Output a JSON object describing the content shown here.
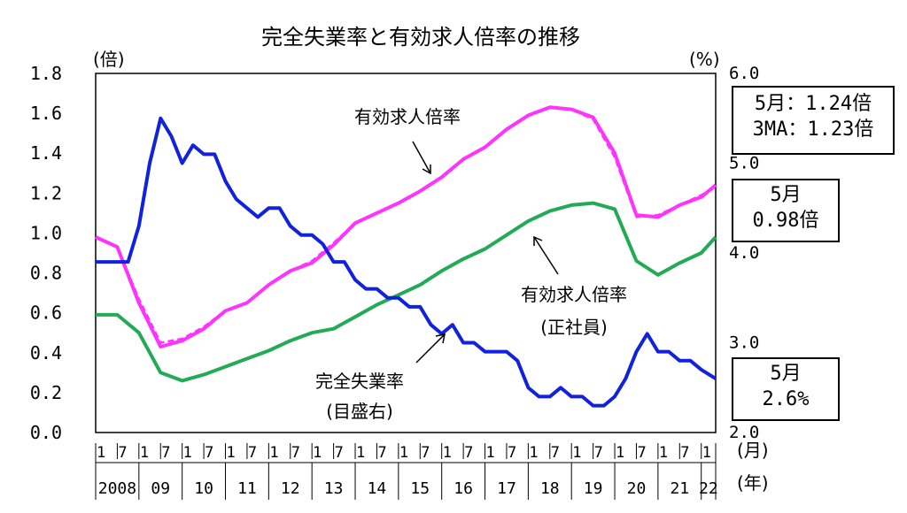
{
  "chart_data": {
    "type": "line",
    "title": "完全失業率と有効求人倍率の推移",
    "y_left": {
      "unit": "(倍)",
      "ylim": [
        0.0,
        1.8
      ],
      "ticks": [
        "0.0",
        "0.2",
        "0.4",
        "0.6",
        "0.8",
        "1.0",
        "1.2",
        "1.4",
        "1.6",
        "1.8"
      ]
    },
    "y_right": {
      "unit": "(%)",
      "ylim": [
        2.0,
        6.0
      ],
      "ticks": [
        "2.0",
        "3.0",
        "4.0",
        "5.0",
        "6.0"
      ]
    },
    "x_month_labels": [
      "1",
      "7",
      "1",
      "7",
      "1",
      "7",
      "1",
      "7",
      "1",
      "7",
      "1",
      "7",
      "1",
      "7",
      "1",
      "7",
      "1",
      "7",
      "1",
      "7",
      "1",
      "7",
      "1",
      "7",
      "1",
      "7",
      "1",
      "7",
      "1"
    ],
    "x_month_unit": "(月)",
    "x_year_labels": [
      "2008",
      "09",
      "10",
      "11",
      "12",
      "13",
      "14",
      "15",
      "16",
      "17",
      "18",
      "19",
      "20",
      "21",
      "22"
    ],
    "x_year_unit": "(年)",
    "x_range": [
      "2008-01",
      "2022-05"
    ],
    "grid": false,
    "series": [
      {
        "name": "有効求人倍率",
        "axis": "left",
        "color": "#ff33ff",
        "style": "solid",
        "x": [
          "2008-01",
          "2008-07",
          "2009-01",
          "2009-07",
          "2010-01",
          "2010-07",
          "2011-01",
          "2011-07",
          "2012-01",
          "2012-07",
          "2013-01",
          "2013-07",
          "2014-01",
          "2014-07",
          "2015-01",
          "2015-07",
          "2016-01",
          "2016-07",
          "2017-01",
          "2017-07",
          "2018-01",
          "2018-07",
          "2019-01",
          "2019-07",
          "2020-01",
          "2020-07",
          "2021-01",
          "2021-07",
          "2022-01",
          "2022-05"
        ],
        "values": [
          0.98,
          0.93,
          0.65,
          0.43,
          0.46,
          0.52,
          0.61,
          0.65,
          0.74,
          0.81,
          0.85,
          0.94,
          1.05,
          1.1,
          1.15,
          1.21,
          1.28,
          1.37,
          1.43,
          1.52,
          1.59,
          1.63,
          1.62,
          1.58,
          1.4,
          1.09,
          1.08,
          1.14,
          1.18,
          1.24
        ]
      },
      {
        "name": "有効求人倍率 3MA",
        "axis": "left",
        "color": "#ff33ff",
        "style": "dashed",
        "x": [
          "2008-01",
          "2008-07",
          "2009-01",
          "2009-07",
          "2010-01",
          "2010-07",
          "2011-01",
          "2011-07",
          "2012-01",
          "2012-07",
          "2013-01",
          "2013-07",
          "2014-01",
          "2014-07",
          "2015-01",
          "2015-07",
          "2016-01",
          "2016-07",
          "2017-01",
          "2017-07",
          "2018-01",
          "2018-07",
          "2019-01",
          "2019-07",
          "2020-01",
          "2020-07",
          "2021-01",
          "2021-07",
          "2022-01",
          "2022-05"
        ],
        "values": [
          0.98,
          0.93,
          0.67,
          0.45,
          0.47,
          0.53,
          0.61,
          0.65,
          0.74,
          0.81,
          0.86,
          0.95,
          1.05,
          1.1,
          1.15,
          1.21,
          1.28,
          1.37,
          1.43,
          1.52,
          1.59,
          1.63,
          1.62,
          1.57,
          1.38,
          1.08,
          1.09,
          1.14,
          1.19,
          1.23
        ]
      },
      {
        "name": "有効求人倍率(正社員)",
        "axis": "left",
        "color": "#22aa55",
        "style": "solid",
        "x": [
          "2008-01",
          "2008-07",
          "2009-01",
          "2009-07",
          "2010-01",
          "2010-07",
          "2011-01",
          "2011-07",
          "2012-01",
          "2012-07",
          "2013-01",
          "2013-07",
          "2014-01",
          "2014-07",
          "2015-01",
          "2015-07",
          "2016-01",
          "2016-07",
          "2017-01",
          "2017-07",
          "2018-01",
          "2018-07",
          "2019-01",
          "2019-07",
          "2020-01",
          "2020-07",
          "2021-01",
          "2021-07",
          "2022-01",
          "2022-05"
        ],
        "values": [
          0.59,
          0.59,
          0.5,
          0.3,
          0.26,
          0.29,
          0.33,
          0.37,
          0.41,
          0.46,
          0.5,
          0.52,
          0.58,
          0.64,
          0.69,
          0.74,
          0.81,
          0.87,
          0.92,
          0.99,
          1.06,
          1.11,
          1.14,
          1.15,
          1.12,
          0.86,
          0.79,
          0.85,
          0.9,
          0.98
        ]
      },
      {
        "name": "完全失業率",
        "axis": "right",
        "color": "#1122dd",
        "style": "solid",
        "x": [
          "2008-01",
          "2008-04",
          "2008-07",
          "2008-10",
          "2009-01",
          "2009-04",
          "2009-07",
          "2009-10",
          "2010-01",
          "2010-04",
          "2010-07",
          "2010-10",
          "2011-01",
          "2011-04",
          "2011-07",
          "2011-10",
          "2012-01",
          "2012-04",
          "2012-07",
          "2012-10",
          "2013-01",
          "2013-04",
          "2013-07",
          "2013-10",
          "2014-01",
          "2014-04",
          "2014-07",
          "2014-10",
          "2015-01",
          "2015-04",
          "2015-07",
          "2015-10",
          "2016-01",
          "2016-04",
          "2016-07",
          "2016-10",
          "2017-01",
          "2017-04",
          "2017-07",
          "2017-10",
          "2018-01",
          "2018-04",
          "2018-07",
          "2018-10",
          "2019-01",
          "2019-04",
          "2019-07",
          "2019-10",
          "2020-01",
          "2020-04",
          "2020-07",
          "2020-10",
          "2021-01",
          "2021-04",
          "2021-07",
          "2021-10",
          "2022-01",
          "2022-05"
        ],
        "values": [
          3.9,
          3.9,
          3.9,
          3.9,
          4.3,
          5.0,
          5.5,
          5.3,
          5.0,
          5.2,
          5.1,
          5.1,
          4.8,
          4.6,
          4.5,
          4.4,
          4.5,
          4.5,
          4.3,
          4.2,
          4.2,
          4.1,
          3.9,
          3.9,
          3.7,
          3.6,
          3.6,
          3.5,
          3.5,
          3.4,
          3.4,
          3.2,
          3.1,
          3.2,
          3.0,
          3.0,
          2.9,
          2.9,
          2.9,
          2.8,
          2.5,
          2.4,
          2.4,
          2.5,
          2.4,
          2.4,
          2.3,
          2.3,
          2.4,
          2.6,
          2.9,
          3.1,
          2.9,
          2.9,
          2.8,
          2.8,
          2.7,
          2.6
        ]
      }
    ],
    "annotations": [
      {
        "text": "有効求人倍率",
        "series": "有効求人倍率"
      },
      {
        "text": "有効求人倍率",
        "sub": "(正社員)",
        "series": "有効求人倍率(正社員)"
      },
      {
        "text": "完全失業率",
        "sub": "(目盛右)",
        "series": "完全失業率"
      }
    ]
  },
  "callouts": [
    {
      "lines": [
        "5月：1.24倍",
        "3MA：1.23倍"
      ]
    },
    {
      "lines": [
        "5月",
        "0.98倍"
      ]
    },
    {
      "lines": [
        "5月",
        "2.6%"
      ]
    }
  ]
}
